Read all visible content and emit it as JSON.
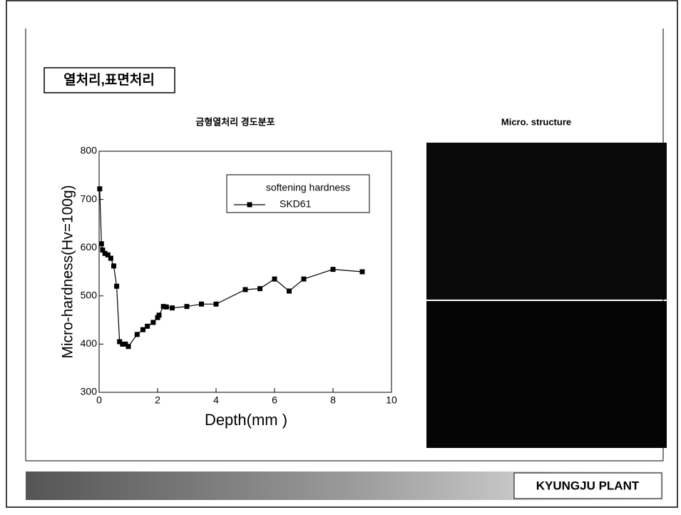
{
  "header": {
    "title": "열처리,표면처리"
  },
  "micro_title": "Micro. structure",
  "footer": {
    "plant": "KYUNGJU PLANT"
  },
  "chart_data": {
    "type": "line",
    "title": "금형열처리 경도분포",
    "x_label": "Depth(mm )",
    "y_label": "Micro-hardness(Hv=100g)",
    "legend_title": "softening hardness",
    "x": [
      0.02,
      0.08,
      0.12,
      0.2,
      0.3,
      0.4,
      0.5,
      0.6,
      0.7,
      0.8,
      0.9,
      1.0,
      1.3,
      1.5,
      1.65,
      1.85,
      2.0,
      2.05,
      2.2,
      2.3,
      2.5,
      3.0,
      3.5,
      4.0,
      5.0,
      5.5,
      6.0,
      6.5,
      7.0,
      8.0,
      9.0
    ],
    "series": [
      {
        "name": "SKD61",
        "color": "#000000",
        "values": [
          722,
          608,
          595,
          588,
          585,
          578,
          562,
          520,
          405,
          400,
          400,
          395,
          420,
          430,
          437,
          445,
          455,
          460,
          478,
          477,
          475,
          478,
          483,
          483,
          513,
          515,
          535,
          510,
          535,
          555,
          550
        ]
      }
    ],
    "xlim": [
      0,
      10
    ],
    "xticks": [
      0,
      2,
      4,
      6,
      8,
      10
    ],
    "ylim": [
      300,
      800
    ],
    "yticks": [
      300,
      400,
      500,
      600,
      700,
      800
    ]
  }
}
